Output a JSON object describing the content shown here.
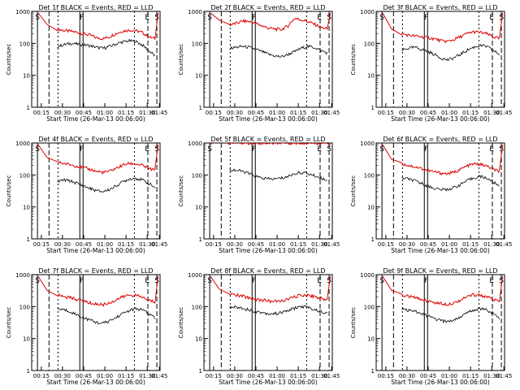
{
  "chart_data": {
    "type": "line",
    "shared": {
      "ylabel": "Counts/sec",
      "xlabel": "Start Time (26-Mar-13 00:06:00)",
      "ylim": [
        1,
        1000
      ],
      "yscale": "log",
      "y_ticks": [
        "1",
        "10",
        "100",
        "1000"
      ],
      "x_tick_labels": [
        "00:15",
        "00:30",
        "00:45",
        "01:00",
        "01:15",
        "01:30",
        "01:45"
      ],
      "series_colors": {
        "events": "#000000",
        "lld": "#dd0000"
      },
      "marker_labels": [
        "S",
        "F",
        "E",
        "S"
      ],
      "grid": false,
      "legend": "none"
    },
    "panels": [
      {
        "title": "Det 1f BLACK = Events, RED = LLD",
        "events": [
          80,
          90,
          100,
          95,
          90,
          85,
          75,
          70,
          80,
          95,
          110,
          120,
          115,
          90,
          60,
          40
        ],
        "lld": [
          280,
          250,
          240,
          220,
          200,
          180,
          150,
          140,
          160,
          200,
          240,
          260,
          250,
          220,
          160,
          140
        ]
      },
      {
        "title": "Det 2f BLACK = Events, RED = LLD",
        "events": [
          70,
          75,
          80,
          75,
          65,
          55,
          45,
          40,
          38,
          45,
          55,
          70,
          80,
          75,
          60,
          50
        ],
        "lld": [
          380,
          420,
          500,
          480,
          420,
          350,
          300,
          280,
          270,
          350,
          600,
          550,
          480,
          400,
          320,
          280
        ]
      },
      {
        "title": "Det 3f BLACK = Events, RED = LLD",
        "events": [
          60,
          70,
          75,
          65,
          55,
          45,
          35,
          30,
          35,
          45,
          60,
          75,
          85,
          80,
          60,
          45
        ],
        "lld": [
          200,
          180,
          170,
          160,
          150,
          140,
          120,
          115,
          130,
          160,
          200,
          230,
          220,
          200,
          160,
          140
        ]
      },
      {
        "title": "Det 4f BLACK = Events, RED = LLD",
        "events": [
          60,
          70,
          65,
          55,
          45,
          38,
          32,
          30,
          35,
          45,
          60,
          75,
          80,
          70,
          55,
          40
        ],
        "lld": [
          250,
          230,
          210,
          190,
          170,
          150,
          130,
          120,
          130,
          160,
          200,
          230,
          220,
          200,
          160,
          140
        ]
      },
      {
        "title": "Det 5f BLACK = Events, RED = LLD",
        "events": [
          150,
          140,
          130,
          110,
          90,
          80,
          75,
          75,
          80,
          90,
          110,
          120,
          110,
          95,
          80,
          70
        ],
        "lld": [
          1000,
          1000,
          1000,
          1000,
          1000,
          1000,
          1000,
          1000,
          1000,
          1000,
          1000,
          1000,
          1000,
          1000,
          1000,
          1000
        ]
      },
      {
        "title": "Det 6f BLACK = Events, RED = LLD",
        "events": [
          80,
          75,
          65,
          55,
          45,
          38,
          35,
          35,
          40,
          50,
          65,
          80,
          90,
          80,
          60,
          45
        ],
        "lld": [
          220,
          200,
          180,
          160,
          140,
          125,
          115,
          110,
          120,
          150,
          190,
          220,
          215,
          190,
          150,
          130
        ]
      },
      {
        "title": "Det 7f BLACK = Events, RED = LLD",
        "events": [
          85,
          80,
          70,
          55,
          45,
          38,
          32,
          30,
          35,
          45,
          60,
          75,
          85,
          80,
          60,
          45
        ],
        "lld": [
          230,
          210,
          190,
          170,
          150,
          130,
          120,
          115,
          130,
          160,
          200,
          230,
          225,
          200,
          160,
          140
        ]
      },
      {
        "title": "Det 8f BLACK = Events, RED = LLD",
        "events": [
          100,
          95,
          90,
          80,
          70,
          65,
          60,
          60,
          65,
          75,
          90,
          100,
          95,
          80,
          70,
          60
        ],
        "lld": [
          250,
          230,
          210,
          190,
          170,
          160,
          150,
          145,
          150,
          170,
          200,
          230,
          225,
          210,
          180,
          160
        ]
      },
      {
        "title": "Det 9f BLACK = Events, RED = LLD",
        "events": [
          80,
          75,
          70,
          60,
          50,
          42,
          36,
          34,
          38,
          48,
          62,
          78,
          88,
          80,
          60,
          45
        ],
        "lld": [
          230,
          210,
          190,
          170,
          150,
          135,
          125,
          120,
          130,
          160,
          200,
          235,
          230,
          205,
          165,
          145
        ]
      }
    ]
  }
}
